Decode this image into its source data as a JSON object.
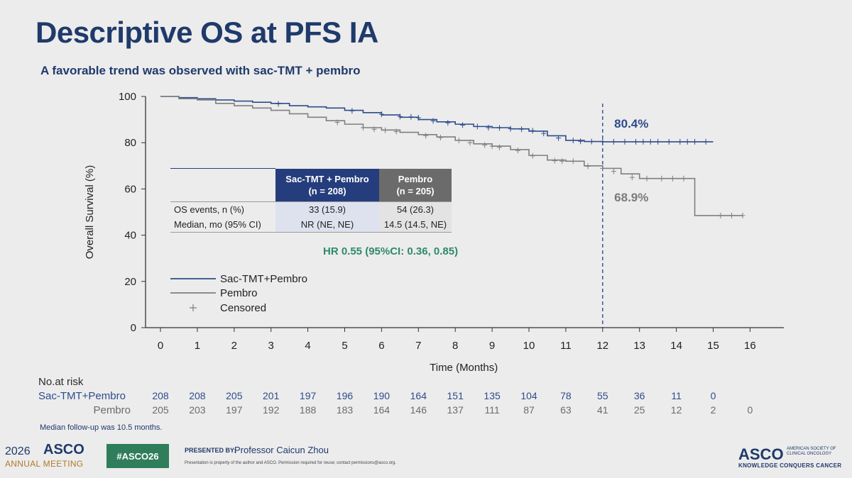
{
  "slide": {
    "title": "Descriptive OS at PFS IA",
    "subtitle": "A favorable trend was observed with sac-TMT + pembro"
  },
  "chart_data": {
    "type": "line",
    "xlabel": "Time (Months)",
    "ylabel": "Overall Survival (%)",
    "xlim": [
      0,
      16
    ],
    "ylim": [
      0,
      100
    ],
    "x_ticks": [
      "0",
      "1",
      "2",
      "3",
      "4",
      "5",
      "6",
      "7",
      "8",
      "9",
      "10",
      "11",
      "12",
      "13",
      "14",
      "15",
      "16"
    ],
    "y_ticks": [
      "0",
      "20",
      "40",
      "60",
      "80",
      "100"
    ],
    "vline_x": 12,
    "annotations": [
      {
        "text": "80.4%",
        "x": 12.2,
        "y": 89,
        "color": "#2e4b8b"
      },
      {
        "text": "68.9%",
        "x": 12.2,
        "y": 57,
        "color": "#7a7a7a"
      }
    ],
    "series": [
      {
        "name": "Sac-TMT+Pembro",
        "color": "#2e4b8b",
        "points": [
          [
            0,
            100
          ],
          [
            0.5,
            99.5
          ],
          [
            1,
            99
          ],
          [
            1.5,
            98.5
          ],
          [
            2,
            98
          ],
          [
            2.5,
            97.5
          ],
          [
            3,
            97
          ],
          [
            3.5,
            96
          ],
          [
            4,
            95.5
          ],
          [
            4.5,
            95
          ],
          [
            5,
            94
          ],
          [
            5.5,
            93
          ],
          [
            6,
            92
          ],
          [
            6.5,
            91
          ],
          [
            7,
            90
          ],
          [
            7.5,
            89
          ],
          [
            8,
            88
          ],
          [
            8.5,
            87
          ],
          [
            9,
            86.5
          ],
          [
            9.5,
            86
          ],
          [
            10,
            85
          ],
          [
            10.5,
            83
          ],
          [
            11,
            81
          ],
          [
            11.5,
            80.5
          ],
          [
            12,
            80.4
          ],
          [
            13,
            80.4
          ],
          [
            14,
            80.4
          ],
          [
            15,
            80.4
          ]
        ],
        "censored": [
          [
            3.2,
            96.8
          ],
          [
            5.2,
            93.8
          ],
          [
            6,
            92.3
          ],
          [
            6.5,
            91.3
          ],
          [
            6.8,
            91.2
          ],
          [
            7,
            90.8
          ],
          [
            7.4,
            89.4
          ],
          [
            7.8,
            88.6
          ],
          [
            8.2,
            87.6
          ],
          [
            8.6,
            87
          ],
          [
            8.9,
            86.5
          ],
          [
            9.2,
            86.4
          ],
          [
            9.5,
            86
          ],
          [
            9.8,
            85.8
          ],
          [
            10.1,
            85.2
          ],
          [
            10.4,
            84
          ],
          [
            10.8,
            82
          ],
          [
            11.2,
            81
          ],
          [
            11.4,
            80.6
          ],
          [
            11.7,
            80.5
          ],
          [
            12,
            80.4
          ],
          [
            12.3,
            80.4
          ],
          [
            12.6,
            80.4
          ],
          [
            12.9,
            80.4
          ],
          [
            13.1,
            80.4
          ],
          [
            13.3,
            80.4
          ],
          [
            13.5,
            80.4
          ],
          [
            13.8,
            80.4
          ],
          [
            14.1,
            80.4
          ],
          [
            14.3,
            80.4
          ],
          [
            14.5,
            80.4
          ],
          [
            14.8,
            80.4
          ]
        ]
      },
      {
        "name": "Pembro",
        "color": "#7f7f7f",
        "points": [
          [
            0,
            100
          ],
          [
            0.5,
            99
          ],
          [
            1,
            98.5
          ],
          [
            1.5,
            97
          ],
          [
            2,
            96
          ],
          [
            2.5,
            95
          ],
          [
            3,
            94
          ],
          [
            3.5,
            92.5
          ],
          [
            4,
            91
          ],
          [
            4.5,
            89.5
          ],
          [
            5,
            88
          ],
          [
            5.5,
            86.5
          ],
          [
            6,
            85.5
          ],
          [
            6.5,
            84.5
          ],
          [
            7,
            83.5
          ],
          [
            7.5,
            82.5
          ],
          [
            8,
            81
          ],
          [
            8.5,
            79.5
          ],
          [
            9,
            78.5
          ],
          [
            9.5,
            77
          ],
          [
            10,
            74.5
          ],
          [
            10.5,
            72.5
          ],
          [
            11,
            72
          ],
          [
            11.5,
            70
          ],
          [
            12,
            68.9
          ],
          [
            12.5,
            66.5
          ],
          [
            13,
            64.5
          ],
          [
            14,
            64.5
          ],
          [
            14.5,
            64.5
          ],
          [
            14.5,
            48.5
          ],
          [
            15.8,
            48.5
          ]
        ],
        "censored": [
          [
            4.8,
            88.8
          ],
          [
            5.5,
            86.5
          ],
          [
            5.8,
            85.8
          ],
          [
            6.1,
            85.4
          ],
          [
            6.4,
            84.8
          ],
          [
            7.2,
            83
          ],
          [
            7.6,
            82.2
          ],
          [
            8.1,
            81
          ],
          [
            8.4,
            80
          ],
          [
            8.8,
            79
          ],
          [
            9,
            78.5
          ],
          [
            9.2,
            78
          ],
          [
            9.7,
            76.6
          ],
          [
            10.1,
            74.3
          ],
          [
            10.7,
            72.2
          ],
          [
            10.9,
            72
          ],
          [
            11.2,
            72
          ],
          [
            11.6,
            69.8
          ],
          [
            12,
            68.9
          ],
          [
            12.3,
            67.6
          ],
          [
            12.8,
            65
          ],
          [
            13.2,
            64.5
          ],
          [
            13.6,
            64.5
          ],
          [
            13.9,
            64.5
          ],
          [
            14.2,
            64.5
          ],
          [
            15.2,
            48.5
          ],
          [
            15.5,
            48.5
          ],
          [
            15.8,
            48.5
          ]
        ]
      }
    ],
    "legend": [
      {
        "label": "Sac-TMT+Pembro",
        "color": "#2e4b8b",
        "marker": "line"
      },
      {
        "label": "Pembro",
        "color": "#7f7f7f",
        "marker": "line"
      },
      {
        "label": "Censored",
        "color": "#7f7f7f",
        "marker": "+"
      }
    ]
  },
  "table": {
    "header_sac": "Sac-TMT + Pembro",
    "header_sac_n": "(n = 208)",
    "header_pem": "Pembro",
    "header_pem_n": "(n = 205)",
    "rows": [
      {
        "label": "OS events, n (%)",
        "sac": "33 (15.9)",
        "pem": "54 (26.3)"
      },
      {
        "label": "Median, mo (95% CI)",
        "sac": "NR (NE, NE)",
        "pem": "14.5 (14.5, NE)"
      }
    ]
  },
  "hr": "HR 0.55 (95%CI: 0.36, 0.85)",
  "risk": {
    "header": "No.at risk",
    "rows": [
      {
        "label": "Sac-TMT+Pembro",
        "color": "#2e4b8b",
        "values": [
          "208",
          "208",
          "205",
          "201",
          "197",
          "196",
          "190",
          "164",
          "151",
          "135",
          "104",
          "78",
          "55",
          "36",
          "11",
          "0"
        ]
      },
      {
        "label": "Pembro",
        "color": "#6b6b6b",
        "values": [
          "205",
          "203",
          "197",
          "192",
          "188",
          "183",
          "164",
          "146",
          "137",
          "111",
          "87",
          "63",
          "41",
          "25",
          "12",
          "2",
          "0"
        ]
      }
    ]
  },
  "followup": "Median follow-up was 10.5 months.",
  "footer": {
    "year": "2026",
    "brand": "ASCO",
    "meeting": "ANNUAL MEETING",
    "hashtag": "#ASCO26",
    "presented_by": "PRESENTED BY:",
    "presenter": "Professor Caicun Zhou",
    "disclaimer": "Presentation is property of the author and ASCO. Permission required for reuse; contact permissions@asco.org.",
    "logo": "ASCO",
    "logo_small": "AMERICAN SOCIETY OF CLINICAL ONCOLOGY",
    "logo_tag": "KNOWLEDGE CONQUERS CANCER"
  }
}
